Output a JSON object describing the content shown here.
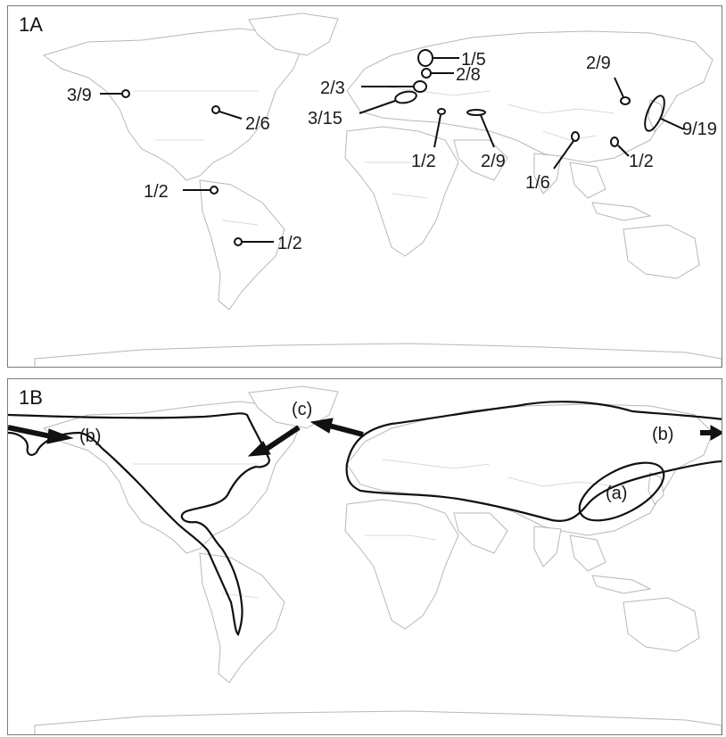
{
  "panels": {
    "a": {
      "label": "1A"
    },
    "b": {
      "label": "1B"
    }
  },
  "sites": [
    {
      "id": "nw-north-america",
      "label": "3/9"
    },
    {
      "id": "ne-north-america",
      "label": "2/6"
    },
    {
      "id": "colombia",
      "label": "1/2"
    },
    {
      "id": "brazil",
      "label": "1/2"
    },
    {
      "id": "scandinavia",
      "label": "1/5"
    },
    {
      "id": "baltic",
      "label": "2/8"
    },
    {
      "id": "poland",
      "label": "2/3"
    },
    {
      "id": "central-europe",
      "label": "3/15"
    },
    {
      "id": "turkey",
      "label": "1/2"
    },
    {
      "id": "caucasus",
      "label": "2/9"
    },
    {
      "id": "korea",
      "label": "2/9"
    },
    {
      "id": "japan",
      "label": "9/19"
    },
    {
      "id": "southern-china",
      "label": "1/6"
    },
    {
      "id": "taiwan",
      "label": "1/2"
    }
  ],
  "regions": {
    "a": "(a)",
    "b_west": "(b)",
    "b_east": "(b)",
    "c": "(c)"
  }
}
